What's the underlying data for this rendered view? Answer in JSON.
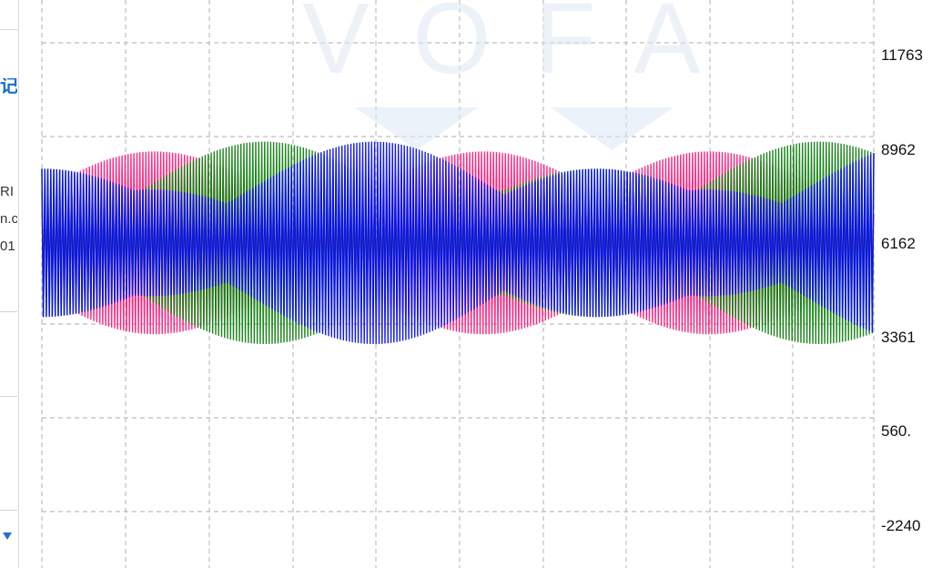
{
  "left_panel": {
    "title_glyph": "记",
    "lines": [
      "RI",
      "n.c",
      "01"
    ]
  },
  "watermark": {
    "text": "VOFA"
  },
  "chart_data": {
    "type": "line",
    "title": "",
    "xlabel": "",
    "ylabel": "",
    "y_axis_side": "right",
    "y_ticks": [
      "11763",
      "8962",
      "6162",
      "3361",
      "560.",
      "-2240"
    ],
    "ylim": [
      -2240,
      11763
    ],
    "grid": true,
    "grid_style": "dashed",
    "legend": "none",
    "series": [
      {
        "color": "#ff1a7a",
        "baseline": 6162,
        "amplitude_peak": 3050,
        "envelope_phase_deg": 0,
        "envelope_periods": 1.5
      },
      {
        "color": "#138013",
        "baseline": 6162,
        "amplitude_peak": 3050,
        "envelope_phase_deg": 120,
        "envelope_periods": 1.5
      },
      {
        "color": "#0a10ee",
        "baseline": 6162,
        "amplitude_peak": 3050,
        "envelope_phase_deg": 240,
        "envelope_periods": 1.5
      }
    ]
  }
}
